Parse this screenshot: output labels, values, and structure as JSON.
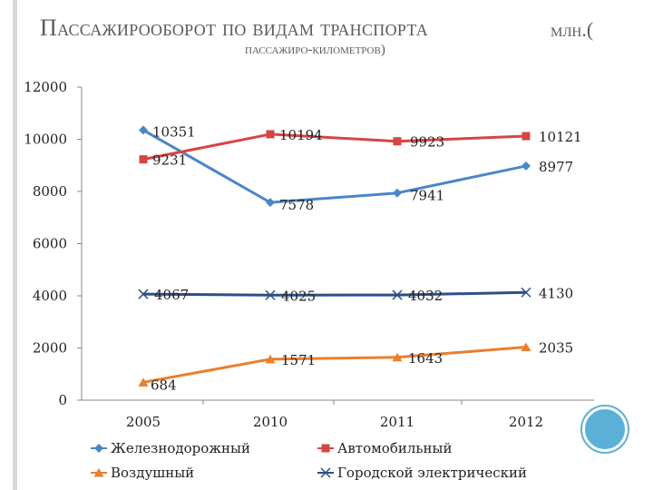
{
  "title": {
    "main": "Пассажирооборот по видам транспорта",
    "units": "млн.(",
    "subtitle": "пассажиро-километров)"
  },
  "chart_data": {
    "type": "line",
    "categories": [
      "2005",
      "2010",
      "2011",
      "2012"
    ],
    "ylim": [
      0,
      12000
    ],
    "yticks": [
      "0",
      "2000",
      "4000",
      "6000",
      "8000",
      "10000",
      "12000"
    ],
    "grid": false,
    "legend_position": "bottom",
    "series": [
      {
        "name": "Железнодорожный",
        "values": [
          10351,
          7578,
          7941,
          8977
        ],
        "labels": [
          "10351",
          "7578",
          "7941",
          "8977"
        ],
        "color": "#4a86c8",
        "marker": "diamond"
      },
      {
        "name": "Автомобильный",
        "values": [
          9231,
          10194,
          9923,
          10121
        ],
        "labels": [
          "9231",
          "10194",
          "9923",
          "10121"
        ],
        "color": "#d64545",
        "marker": "square"
      },
      {
        "name": "Воздушный",
        "values": [
          684,
          1571,
          1643,
          2035
        ],
        "labels": [
          "684",
          "1571",
          "1643",
          "2035"
        ],
        "color": "#ea7f2c",
        "marker": "triangle"
      },
      {
        "name": "Городской электрический",
        "values": [
          4067,
          4025,
          4032,
          4130
        ],
        "labels": [
          "4067",
          "4025",
          "4032",
          "4130"
        ],
        "color": "#2c4f86",
        "marker": "x"
      }
    ]
  }
}
